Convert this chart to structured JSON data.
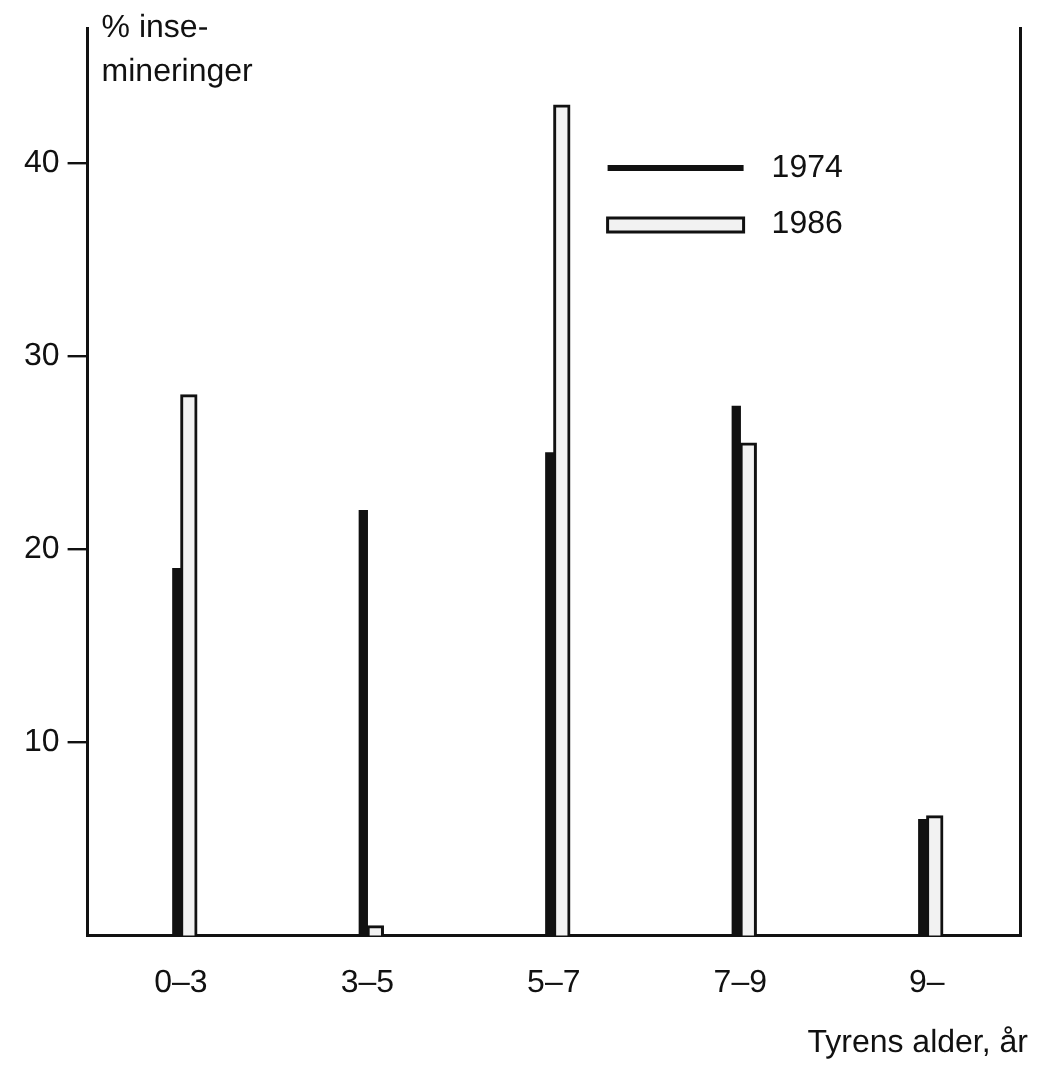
{
  "chart_data": {
    "type": "bar",
    "ylabel": "% inse-\nmineringer",
    "xlabel": "Tyrens alder, år",
    "categories": [
      "0–3",
      "3–5",
      "5–7",
      "7–9",
      "9–"
    ],
    "series": [
      {
        "name": "1974",
        "color": "#111111",
        "values": [
          19,
          22,
          25,
          27.4,
          6
        ]
      },
      {
        "name": "1986",
        "color": "#f2f2f2",
        "values": [
          28,
          0.5,
          43,
          25.5,
          6.2
        ]
      }
    ],
    "ylim": [
      0,
      47
    ],
    "yticks": [
      10,
      20,
      30,
      40
    ],
    "grid": false,
    "legend": "top right"
  }
}
